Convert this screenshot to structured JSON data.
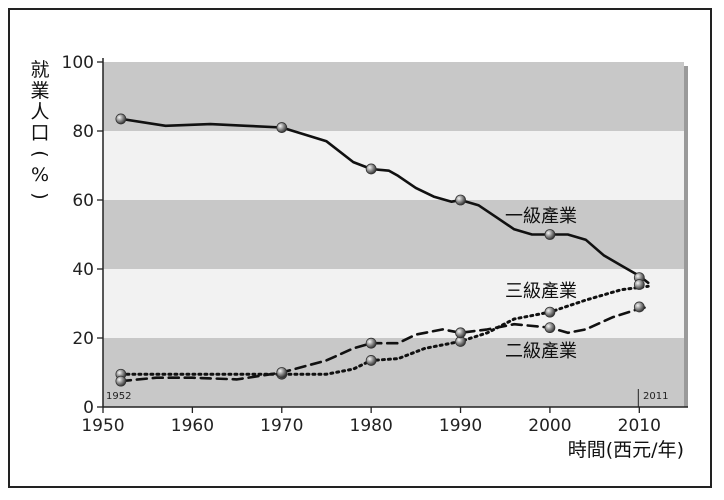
{
  "chart_data": {
    "type": "line",
    "ylabel_chars": [
      "就",
      "業",
      "人",
      "口",
      "(",
      "%",
      ")"
    ],
    "xlabel": "時間(西元/年)",
    "xlim": [
      1950,
      2015
    ],
    "ylim": [
      0,
      100
    ],
    "x_ticks": [
      1950,
      1960,
      1970,
      1980,
      1990,
      2000,
      2010
    ],
    "y_ticks": [
      0,
      20,
      40,
      60,
      80,
      100
    ],
    "x_ticks_labels": [
      "1950",
      "1960",
      "1970",
      "1980",
      "1990",
      "2000",
      "2010"
    ],
    "y_ticks_labels": [
      "0",
      "20",
      "40",
      "60",
      "80",
      "100"
    ],
    "start_year_label": "1952",
    "end_year_label": "2011",
    "grid": "alternating horizontal bands",
    "band_colors": [
      "#c8c8c8",
      "#f2f2f2"
    ],
    "series": [
      {
        "name": "一級產業",
        "style": "solid",
        "x": [
          1952,
          1957,
          1962,
          1966,
          1970,
          1975,
          1978,
          1980,
          1982,
          1983,
          1985,
          1987,
          1989,
          1990,
          1992,
          1994,
          1996,
          1998,
          2000,
          2002,
          2004,
          2006,
          2008,
          2010,
          2011
        ],
        "y": [
          83.5,
          81.5,
          82,
          81.5,
          81,
          77,
          71,
          69,
          68.5,
          67,
          63.5,
          61,
          59.5,
          60,
          58.5,
          55,
          51.5,
          50,
          50,
          50,
          48.5,
          44,
          41,
          38,
          36
        ],
        "markers_x": [
          1952,
          1970,
          1980,
          1990,
          2000,
          2010
        ],
        "markers_y": [
          83.5,
          81,
          69,
          60,
          50,
          37.5
        ]
      },
      {
        "name": "三級產業",
        "style": "dotted",
        "x": [
          1952,
          1960,
          1966,
          1970,
          1975,
          1978,
          1980,
          1983,
          1986,
          1990,
          1993,
          1996,
          2000,
          2004,
          2008,
          2011
        ],
        "y": [
          9.5,
          9.5,
          9.5,
          9.5,
          9.5,
          11,
          13.5,
          14,
          17,
          19,
          21.5,
          25.5,
          27.5,
          31,
          34,
          35
        ],
        "markers_x": [
          1952,
          1970,
          1980,
          1990,
          2000,
          2010
        ],
        "markers_y": [
          9.5,
          9.5,
          13.5,
          19,
          27.5,
          35.5
        ]
      },
      {
        "name": "二級產業",
        "style": "dashed",
        "x": [
          1952,
          1956,
          1960,
          1965,
          1970,
          1975,
          1978,
          1980,
          1983,
          1985,
          1988,
          1990,
          1993,
          1996,
          2000,
          2002,
          2004,
          2007,
          2010,
          2011
        ],
        "y": [
          7.5,
          8.5,
          8.5,
          8,
          10,
          13.5,
          17,
          18.5,
          18.5,
          21,
          22.5,
          21.5,
          22.5,
          24,
          23,
          21.5,
          22.5,
          26,
          28.5,
          29
        ],
        "markers_x": [
          1952,
          1970,
          1980,
          1990,
          2000,
          2010
        ],
        "markers_y": [
          7.5,
          10,
          18.5,
          21.5,
          23,
          29
        ]
      }
    ],
    "labels": [
      {
        "series": "一級產業",
        "text": "一級產業"
      },
      {
        "series": "三級產業",
        "text": "三級產業"
      },
      {
        "series": "二級產業",
        "text": "二級產業"
      }
    ]
  }
}
